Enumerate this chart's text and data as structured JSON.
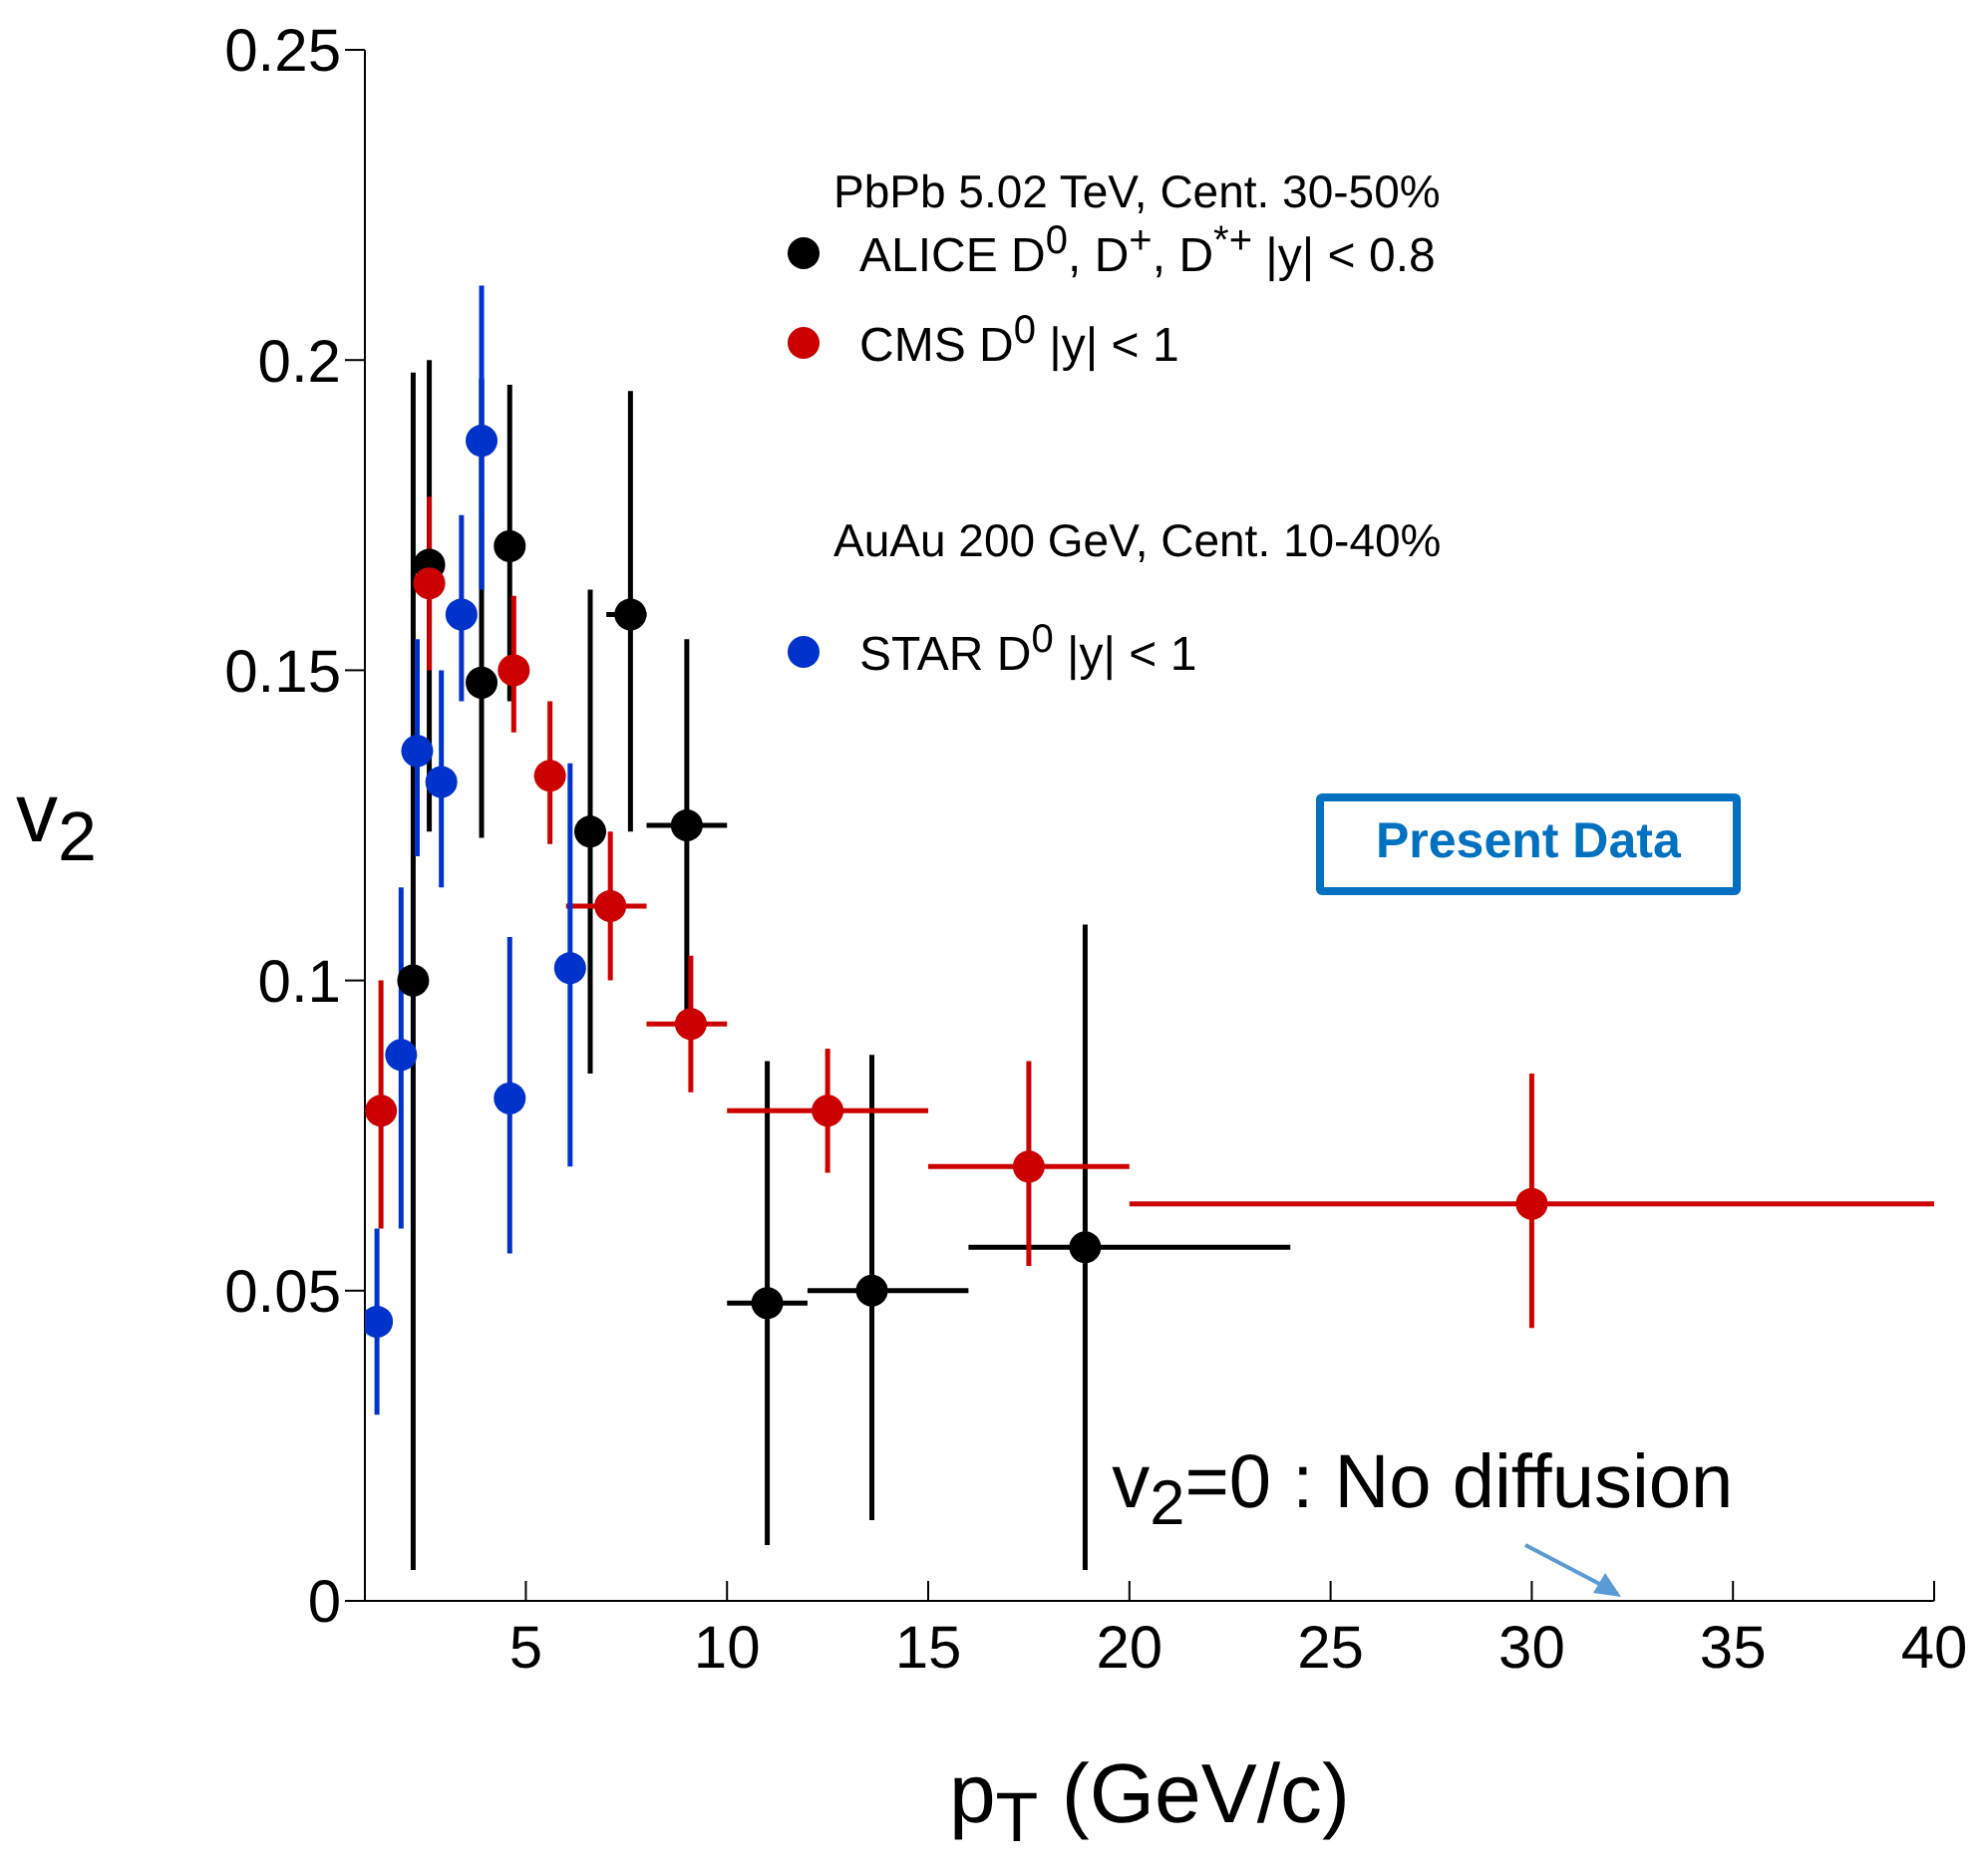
{
  "chart_data": {
    "type": "scatter",
    "xlabel": "p$_{T}$ (GeV/c)",
    "ylabel": "v$_{2}$",
    "xlim": [
      1,
      40
    ],
    "xticks": [
      5,
      10,
      15,
      20,
      25,
      30,
      35,
      40
    ],
    "ylim": [
      0,
      0.25
    ],
    "yticks": [
      0,
      0.05,
      0.1,
      0.15,
      0.2,
      0.25
    ],
    "legend": "top right",
    "marker": "circle",
    "annotations": [
      "PbPb 5.02 TeV, Cent. 30-50%",
      "AuAu 200 GeV, Cent. 10-40%",
      "Present Data",
      "v$_{2}$=0 : No diffusion"
    ],
    "series": [
      {
        "name": "ALICE D$^{0}$, D$^{+}$, D$^{*+}$ |y| < 0.8",
        "color": "#000000",
        "x": [
          2.2,
          2.6,
          3.9,
          4.6,
          6.6,
          7.6,
          9,
          11,
          13.6,
          18.9
        ],
        "values": [
          0.1,
          0.167,
          0.148,
          0.17,
          0.124,
          0.159,
          0.125,
          0.048,
          0.05,
          0.057
        ],
        "errors": [
          [
            0.005,
            0.198
          ],
          [
            0.124,
            0.2
          ],
          [
            0.123,
            0.197
          ],
          [
            0.145,
            0.196
          ],
          [
            0.085,
            0.163
          ],
          [
            0.124,
            0.195
          ],
          [
            0.094,
            0.155
          ],
          [
            0.009,
            0.087
          ],
          [
            0.013,
            0.088
          ],
          [
            0.005,
            0.109
          ]
        ],
        "xerrors": [
          null,
          null,
          null,
          null,
          null,
          [
            7,
            8
          ],
          [
            8,
            10
          ],
          [
            10,
            12
          ],
          [
            12,
            16
          ],
          [
            16,
            24
          ]
        ]
      },
      {
        "name": "CMS D$^{0}$ |y| < 1",
        "color": "#cc0000",
        "x": [
          1.4,
          2.6,
          4.7,
          5.6,
          7.1,
          9.1,
          12.5,
          17.5,
          30
        ],
        "values": [
          0.079,
          0.164,
          0.15,
          0.133,
          0.112,
          0.093,
          0.079,
          0.07,
          0.064
        ],
        "errors": [
          [
            0.06,
            0.1
          ],
          [
            0.15,
            0.178
          ],
          [
            0.14,
            0.162
          ],
          [
            0.122,
            0.145
          ],
          [
            0.1,
            0.124
          ],
          [
            0.082,
            0.104
          ],
          [
            0.069,
            0.089
          ],
          [
            0.054,
            0.087
          ],
          [
            0.044,
            0.085
          ]
        ],
        "xerrors": [
          null,
          null,
          null,
          null,
          [
            6,
            8
          ],
          [
            8,
            10
          ],
          [
            10,
            15
          ],
          [
            15,
            20
          ],
          [
            20,
            40
          ]
        ]
      },
      {
        "name": "STAR D$^{0}$ |y| < 1",
        "color": "#0033cc",
        "x": [
          1.3,
          1.9,
          2.3,
          2.9,
          3.4,
          3.9,
          4.6,
          6.1
        ],
        "values": [
          0.045,
          0.088,
          0.137,
          0.132,
          0.159,
          0.187,
          0.081,
          0.102
        ],
        "errors": [
          [
            0.03,
            0.06
          ],
          [
            0.06,
            0.115
          ],
          [
            0.12,
            0.155
          ],
          [
            0.115,
            0.15
          ],
          [
            0.145,
            0.175
          ],
          [
            0.163,
            0.212
          ],
          [
            0.056,
            0.107
          ],
          [
            0.07,
            0.135
          ]
        ]
      }
    ]
  }
}
